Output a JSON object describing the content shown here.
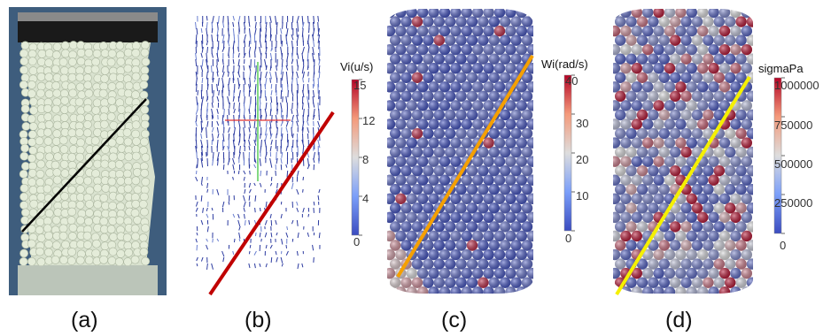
{
  "panels": [
    {
      "id": "a",
      "caption": "(a)",
      "content": "photo",
      "line_color": "#000000"
    },
    {
      "id": "b",
      "caption": "(b)",
      "content": "velocity-vectors",
      "line_color": "#c00000",
      "colorbar": {
        "title": "Vi(u/s)",
        "ticks": [
          "15",
          "12",
          "8",
          "4",
          "0"
        ],
        "min": 0,
        "max": 15
      }
    },
    {
      "id": "c",
      "caption": "(c)",
      "content": "particle-cylinder",
      "line_color": "#f5a000",
      "colorbar": {
        "title": "Wi(rad/s)",
        "ticks": [
          "40",
          "30",
          "20",
          "10",
          "0"
        ],
        "min": 0,
        "max": 40
      }
    },
    {
      "id": "d",
      "caption": "(d)",
      "content": "particle-cylinder",
      "line_color": "#f5f000",
      "colorbar": {
        "title": "sigmaPa",
        "ticks": [
          "1000000",
          "750000",
          "500000",
          "250000",
          "0"
        ],
        "min": 0,
        "max": 1000000
      }
    }
  ],
  "colormap": {
    "low": "#3b4cc0",
    "mid": "#dddddd",
    "high": "#b40426"
  }
}
